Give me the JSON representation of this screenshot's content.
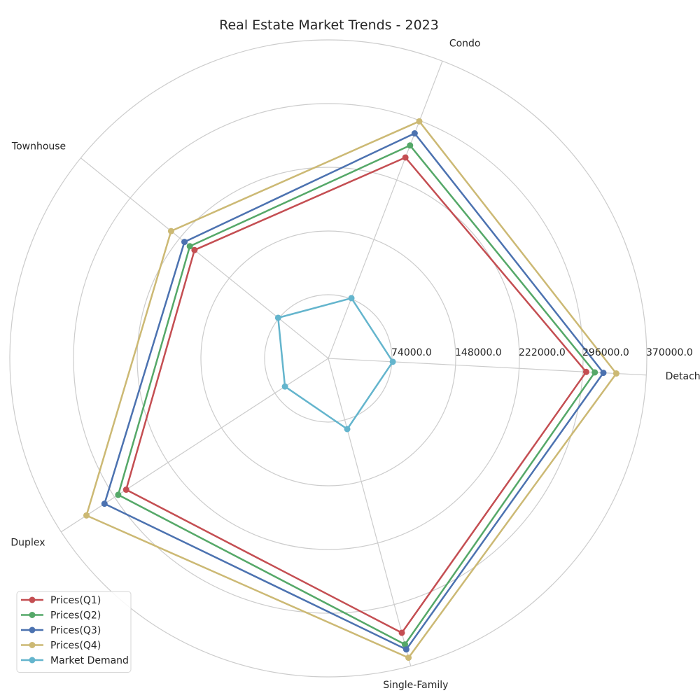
{
  "chart_data": {
    "type": "radar",
    "title": "Real Estate Market Trends - 2023",
    "categories": [
      "Detached",
      "Condo",
      "Townhouse",
      "Duplex",
      "Single-Family"
    ],
    "rticks": [
      74000,
      148000,
      222000,
      296000,
      370000
    ],
    "rtick_labels": [
      "74000.0",
      "148000.0",
      "222000.0",
      "296000.0",
      "370000.0"
    ],
    "rlim": [
      0,
      370000
    ],
    "grid": true,
    "legend_position": "lower-left",
    "series": [
      {
        "name": "Prices(Q1)",
        "color": "#c44e52",
        "values": [
          300000,
          250000,
          200000,
          280000,
          330000
        ]
      },
      {
        "name": "Prices(Q2)",
        "color": "#55a868",
        "values": [
          310000,
          265000,
          207000,
          291000,
          344000
        ]
      },
      {
        "name": "Prices(Q3)",
        "color": "#4c72b0",
        "values": [
          320000,
          280000,
          215000,
          310000,
          350000
        ]
      },
      {
        "name": "Prices(Q4)",
        "color": "#ccb974",
        "values": [
          335000,
          295000,
          235000,
          335000,
          360000
        ]
      },
      {
        "name": "Market Demand",
        "color": "#64b5cd",
        "values": [
          75000,
          75000,
          75000,
          60000,
          85000
        ]
      }
    ]
  }
}
